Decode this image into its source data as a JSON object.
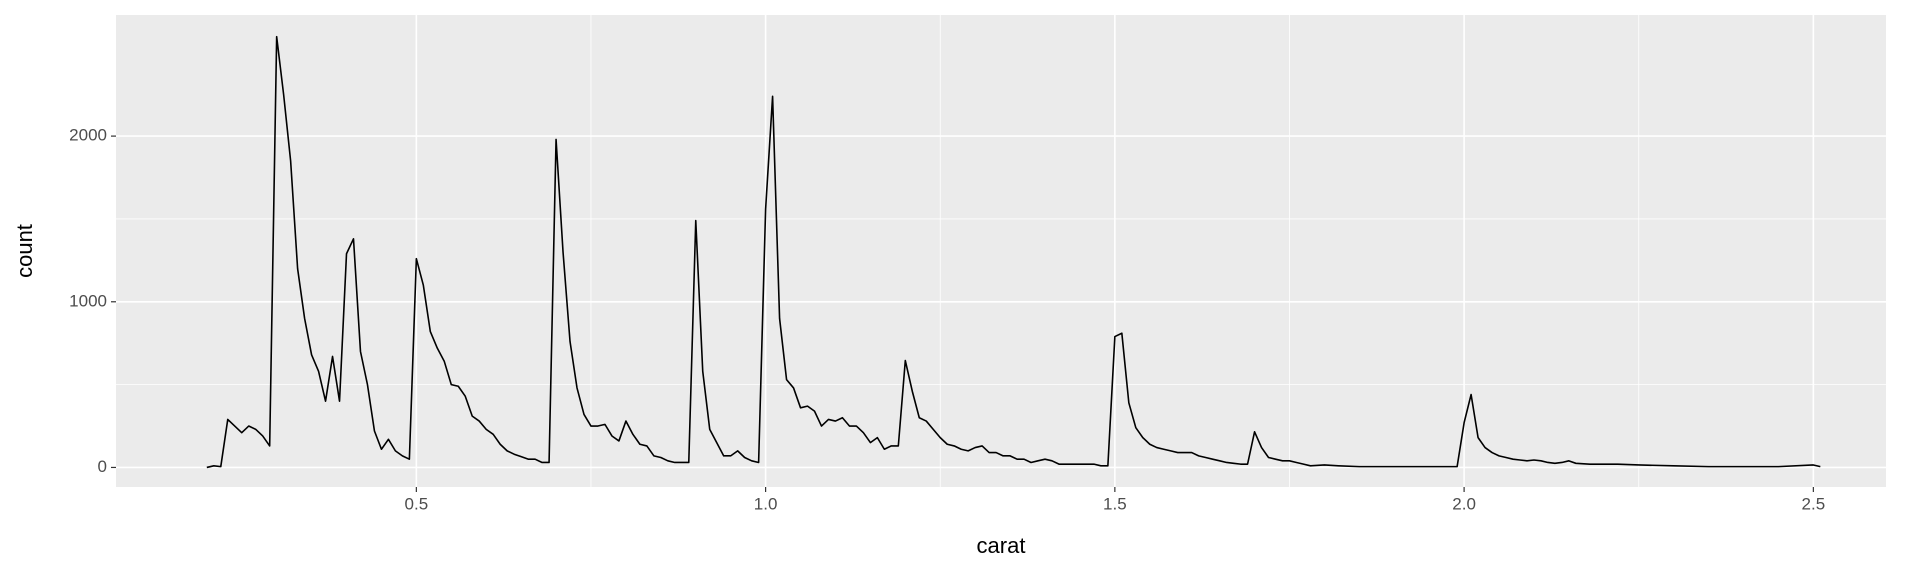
{
  "chart_data": {
    "type": "line",
    "x_label": "carat",
    "y_label": "count",
    "xlim": [
      0.07,
      2.604
    ],
    "ylim": [
      -118,
      2731
    ],
    "xticks": [
      {
        "value": 0.5,
        "label": "0.5"
      },
      {
        "value": 1.0,
        "label": "1.0"
      },
      {
        "value": 1.5,
        "label": "1.5"
      },
      {
        "value": 2.0,
        "label": "2.0"
      },
      {
        "value": 2.5,
        "label": "2.5"
      }
    ],
    "yticks": [
      0,
      1000,
      2000
    ],
    "grid": true,
    "panel_color": "#ebebeb",
    "series": [
      {
        "color": "#000000",
        "x": [
          0.2,
          0.21,
          0.22,
          0.23,
          0.24,
          0.25,
          0.26,
          0.27,
          0.28,
          0.29,
          0.3,
          0.31,
          0.32,
          0.33,
          0.34,
          0.35,
          0.36,
          0.37,
          0.38,
          0.39,
          0.4,
          0.41,
          0.42,
          0.43,
          0.44,
          0.45,
          0.46,
          0.47,
          0.48,
          0.49,
          0.5,
          0.51,
          0.52,
          0.53,
          0.54,
          0.55,
          0.56,
          0.57,
          0.58,
          0.59,
          0.6,
          0.61,
          0.62,
          0.63,
          0.64,
          0.65,
          0.66,
          0.67,
          0.68,
          0.69,
          0.7,
          0.71,
          0.72,
          0.73,
          0.74,
          0.75,
          0.76,
          0.77,
          0.78,
          0.79,
          0.8,
          0.81,
          0.82,
          0.83,
          0.84,
          0.85,
          0.86,
          0.87,
          0.88,
          0.89,
          0.9,
          0.91,
          0.92,
          0.93,
          0.94,
          0.95,
          0.96,
          0.97,
          0.98,
          0.99,
          1.0,
          1.01,
          1.02,
          1.03,
          1.04,
          1.05,
          1.06,
          1.07,
          1.08,
          1.09,
          1.1,
          1.11,
          1.12,
          1.13,
          1.14,
          1.15,
          1.16,
          1.17,
          1.18,
          1.19,
          1.2,
          1.21,
          1.22,
          1.23,
          1.24,
          1.25,
          1.26,
          1.27,
          1.28,
          1.29,
          1.3,
          1.31,
          1.32,
          1.33,
          1.34,
          1.35,
          1.36,
          1.37,
          1.38,
          1.39,
          1.4,
          1.41,
          1.42,
          1.43,
          1.44,
          1.45,
          1.46,
          1.47,
          1.48,
          1.49,
          1.5,
          1.51,
          1.52,
          1.53,
          1.54,
          1.55,
          1.56,
          1.57,
          1.58,
          1.59,
          1.6,
          1.61,
          1.62,
          1.63,
          1.64,
          1.65,
          1.66,
          1.67,
          1.68,
          1.69,
          1.7,
          1.71,
          1.72,
          1.73,
          1.74,
          1.75,
          1.76,
          1.77,
          1.78,
          1.8,
          1.82,
          1.85,
          1.9,
          1.95,
          1.99,
          2.0,
          2.01,
          2.02,
          2.03,
          2.04,
          2.05,
          2.06,
          2.07,
          2.08,
          2.09,
          2.1,
          2.11,
          2.12,
          2.13,
          2.14,
          2.15,
          2.16,
          2.18,
          2.2,
          2.22,
          2.25,
          2.3,
          2.35,
          2.4,
          2.45,
          2.5,
          2.51
        ],
        "values": [
          0,
          10,
          5,
          290,
          250,
          210,
          250,
          230,
          190,
          130,
          2600,
          2250,
          1850,
          1200,
          900,
          680,
          580,
          400,
          670,
          400,
          1290,
          1380,
          700,
          500,
          220,
          110,
          170,
          100,
          70,
          50,
          1260,
          1100,
          820,
          720,
          640,
          500,
          490,
          430,
          310,
          280,
          230,
          200,
          140,
          100,
          80,
          65,
          50,
          50,
          30,
          30,
          1980,
          1300,
          760,
          480,
          320,
          250,
          250,
          260,
          190,
          160,
          280,
          200,
          140,
          130,
          70,
          60,
          40,
          30,
          30,
          30,
          1490,
          580,
          230,
          150,
          70,
          70,
          100,
          60,
          40,
          30,
          1560,
          2240,
          900,
          530,
          480,
          360,
          370,
          340,
          250,
          290,
          280,
          300,
          250,
          250,
          210,
          150,
          180,
          110,
          130,
          130,
          645,
          460,
          300,
          280,
          230,
          180,
          140,
          130,
          110,
          100,
          120,
          130,
          90,
          90,
          70,
          70,
          50,
          50,
          30,
          40,
          50,
          40,
          20,
          20,
          20,
          20,
          20,
          20,
          10,
          10,
          790,
          810,
          390,
          240,
          180,
          140,
          120,
          110,
          100,
          90,
          90,
          90,
          70,
          60,
          50,
          40,
          30,
          25,
          20,
          20,
          215,
          120,
          60,
          50,
          40,
          40,
          30,
          20,
          10,
          15,
          10,
          5,
          5,
          5,
          5,
          270,
          440,
          180,
          120,
          90,
          70,
          60,
          50,
          45,
          40,
          45,
          40,
          30,
          25,
          30,
          40,
          25,
          20,
          20,
          20,
          15,
          10,
          5,
          5,
          5,
          15,
          5
        ]
      }
    ]
  }
}
